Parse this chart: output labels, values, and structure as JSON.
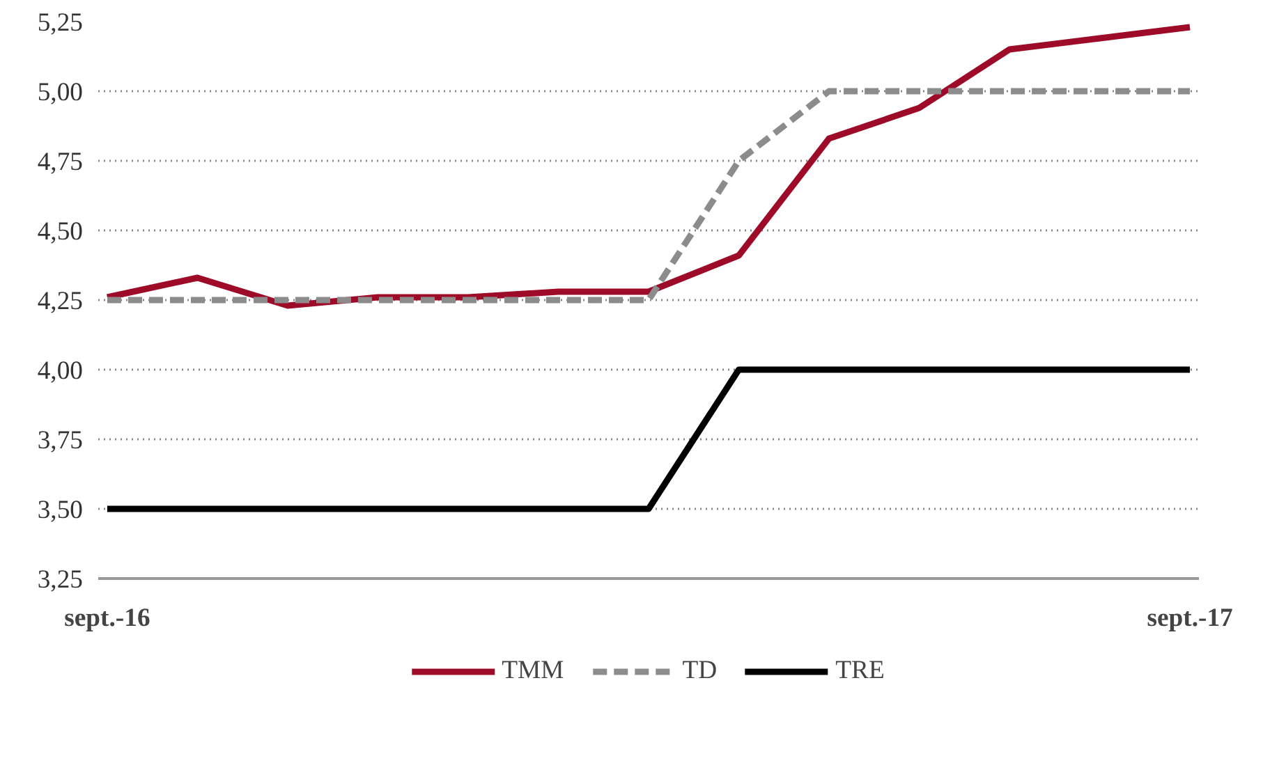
{
  "chart_data": {
    "type": "line",
    "categories": [
      "sept.-16",
      null,
      null,
      null,
      null,
      null,
      null,
      null,
      null,
      null,
      null,
      null,
      "sept.-17"
    ],
    "series": [
      {
        "name": "TMM",
        "color": "#9e0b28",
        "values": [
          4.26,
          4.33,
          4.23,
          4.26,
          4.26,
          4.28,
          4.28,
          4.41,
          4.83,
          4.94,
          5.15,
          5.19,
          5.23
        ]
      },
      {
        "name": "TD",
        "color": "#8c8c8c",
        "line_style": "dashed",
        "values": [
          4.25,
          4.25,
          4.25,
          4.25,
          4.25,
          4.25,
          4.25,
          4.75,
          5.0,
          5.0,
          5.0,
          5.0,
          5.0
        ]
      },
      {
        "name": "TRE",
        "color": "#000000",
        "values": [
          3.5,
          3.5,
          3.5,
          3.5,
          3.5,
          3.5,
          3.5,
          4.0,
          4.0,
          4.0,
          4.0,
          4.0,
          4.0
        ]
      }
    ],
    "ylim": [
      3.25,
      5.25
    ],
    "yticks": [
      {
        "value": 3.25,
        "label": "3,25"
      },
      {
        "value": 3.5,
        "label": "3,50"
      },
      {
        "value": 3.75,
        "label": "3,75"
      },
      {
        "value": 4.0,
        "label": "4,00"
      },
      {
        "value": 4.25,
        "label": "4,25"
      },
      {
        "value": 4.5,
        "label": "4,50"
      },
      {
        "value": 4.75,
        "label": "4,75"
      },
      {
        "value": 5.0,
        "label": "5,00"
      },
      {
        "value": 5.25,
        "label": "5,25"
      }
    ],
    "grid": "y",
    "legend": "bottom",
    "marker": "none",
    "line_style": "solid"
  }
}
